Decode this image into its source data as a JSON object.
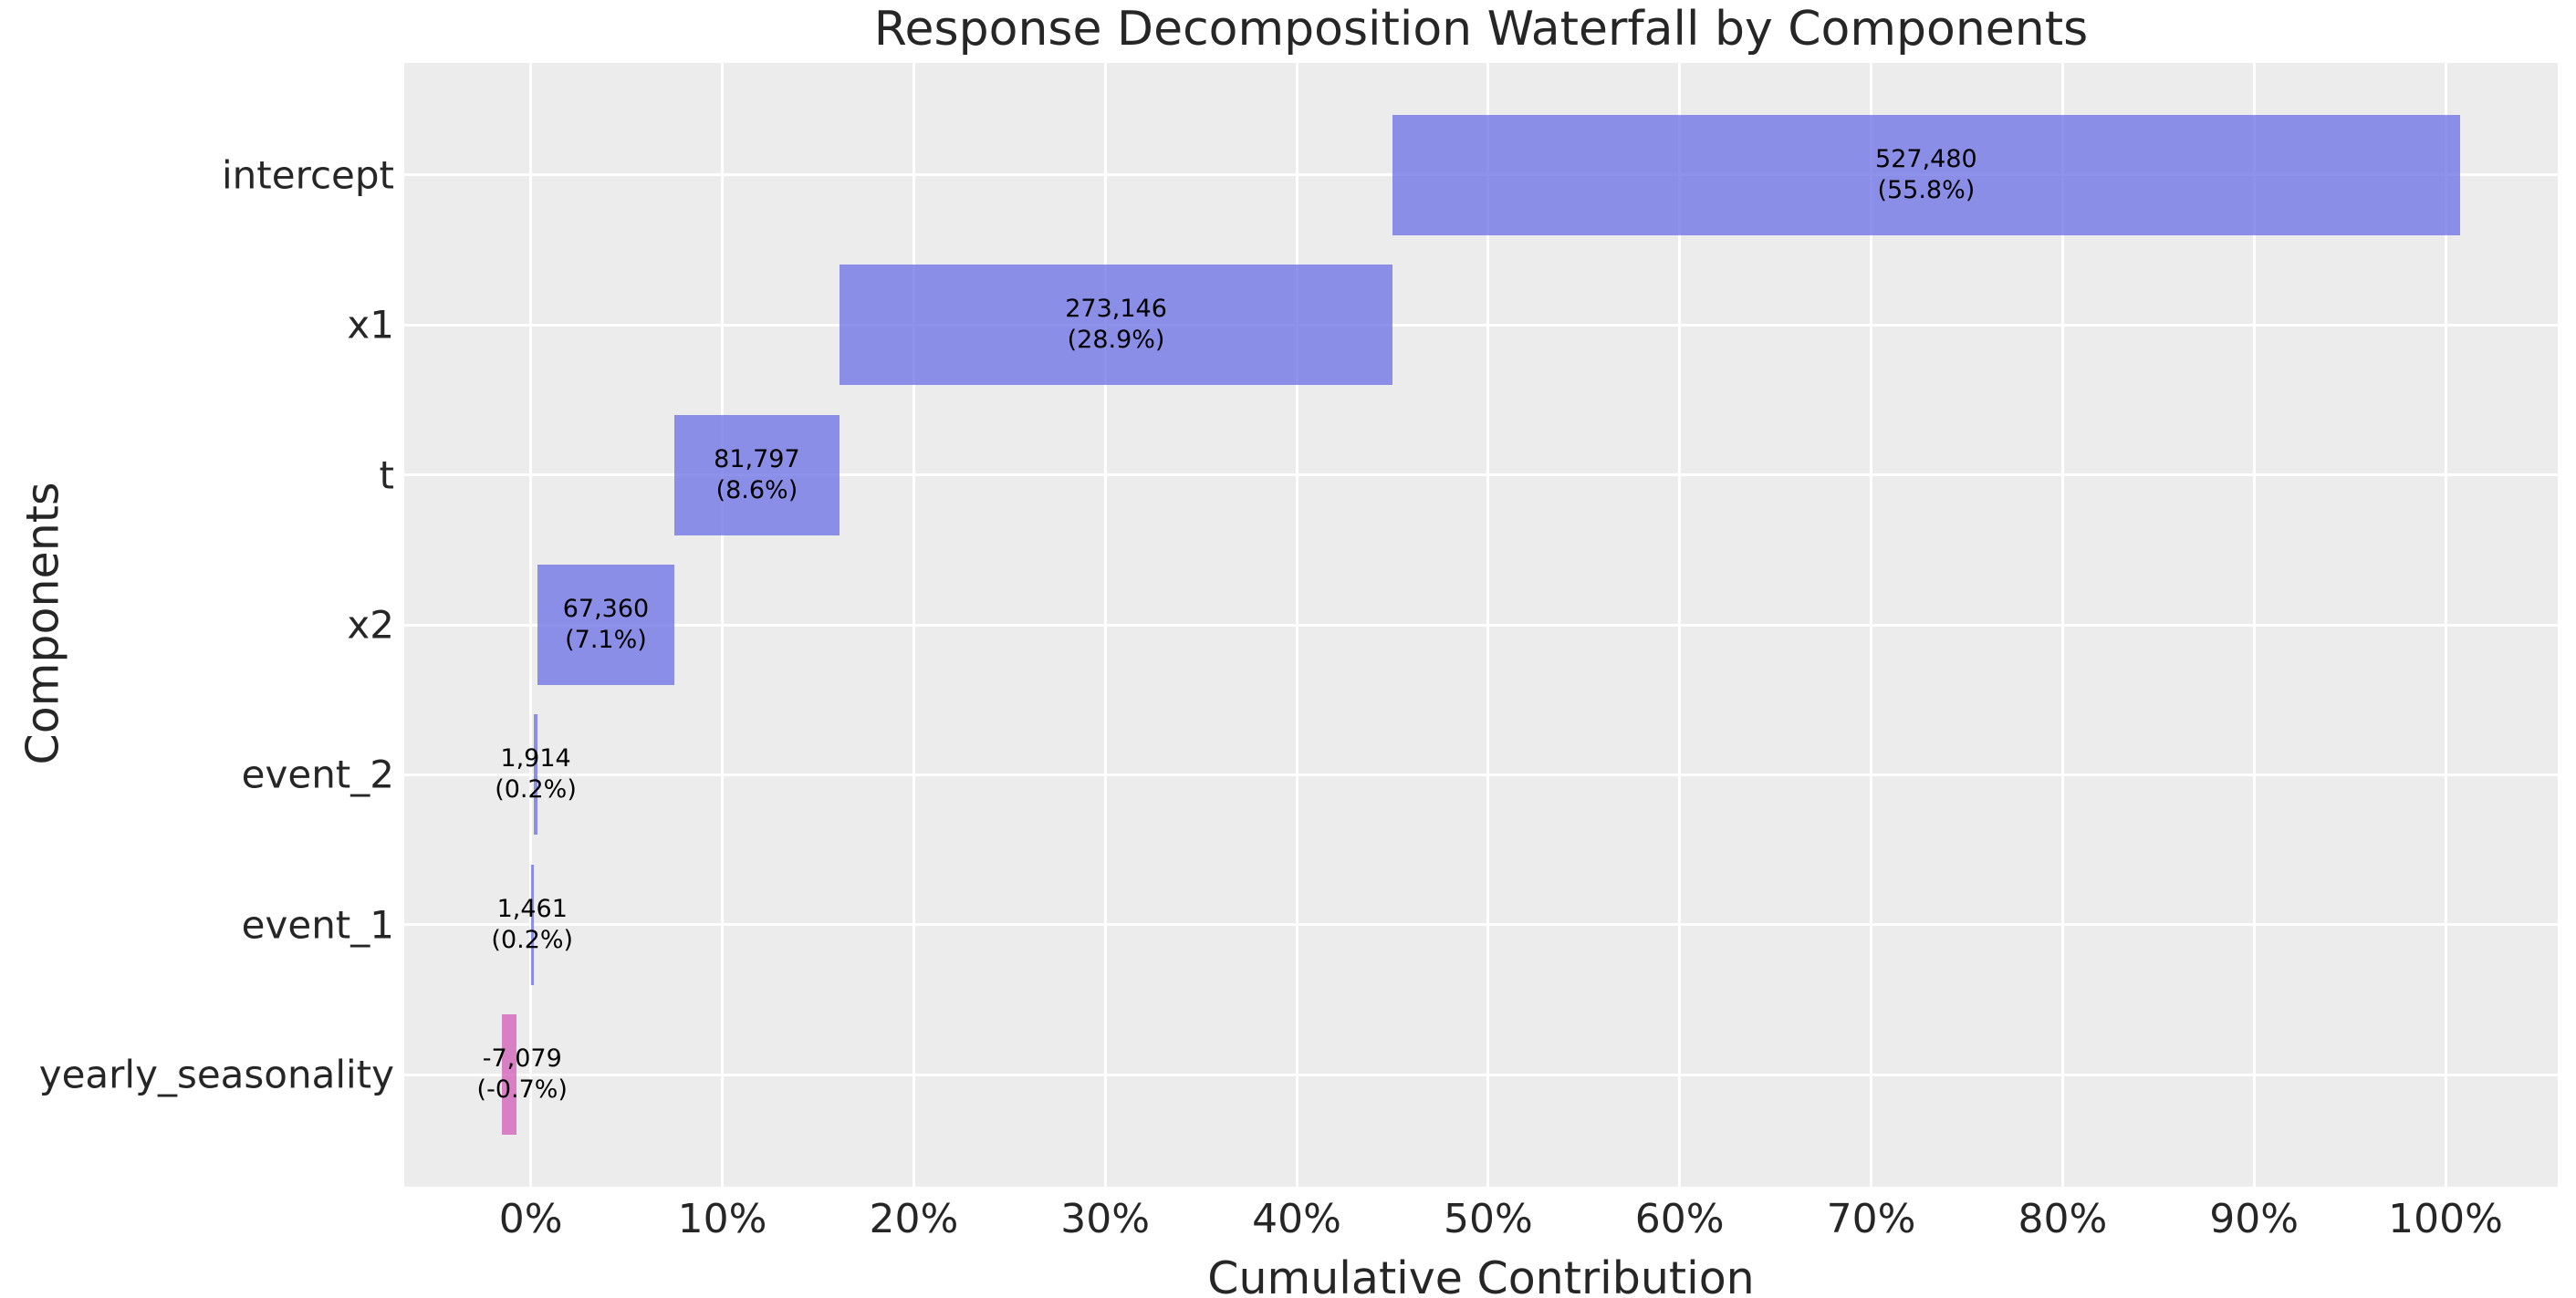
{
  "title": "Response Decomposition Waterfall by Components",
  "x_axis": {
    "label": "Cumulative Contribution"
  },
  "y_axis": {
    "label": "Components"
  },
  "chart_data": {
    "type": "bar",
    "orientation": "horizontal-waterfall",
    "title": "Response Decomposition Waterfall by Components",
    "xlabel": "Cumulative Contribution",
    "ylabel": "Components",
    "xlim": [
      -6.61,
      105.86
    ],
    "grid": true,
    "legend": false,
    "plot_bg_color": "#ececec",
    "grid_color": "#ffffff",
    "text_color": "#262626",
    "bar_label_color": "#000000",
    "bar_alpha": 0.8,
    "colors": {
      "positive": "#7277e5",
      "negative": "#d564ba"
    },
    "x_ticks": [
      {
        "value": 0,
        "label": "0%"
      },
      {
        "value": 10,
        "label": "10%"
      },
      {
        "value": 20,
        "label": "20%"
      },
      {
        "value": 30,
        "label": "30%"
      },
      {
        "value": 40,
        "label": "40%"
      },
      {
        "value": 50,
        "label": "50%"
      },
      {
        "value": 60,
        "label": "60%"
      },
      {
        "value": 70,
        "label": "70%"
      },
      {
        "value": 80,
        "label": "80%"
      },
      {
        "value": 90,
        "label": "90%"
      },
      {
        "value": 100,
        "label": "100%"
      }
    ],
    "categories": [
      "intercept",
      "x1",
      "t",
      "x2",
      "event_2",
      "event_1",
      "yearly_seasonality"
    ],
    "bars": [
      {
        "category": "intercept",
        "value": 527480,
        "pct": 55.8,
        "start_pct": 45.0,
        "end_pct": 100.75,
        "label_line1": "527,480",
        "label_line2": "(55.8%)",
        "sign": "positive"
      },
      {
        "category": "x1",
        "value": 273146,
        "pct": 28.9,
        "start_pct": 16.13,
        "end_pct": 45.0,
        "label_line1": "273,146",
        "label_line2": "(28.9%)",
        "sign": "positive"
      },
      {
        "category": "t",
        "value": 81797,
        "pct": 8.6,
        "start_pct": 7.48,
        "end_pct": 16.13,
        "label_line1": "81,797",
        "label_line2": "(8.6%)",
        "sign": "positive"
      },
      {
        "category": "x2",
        "value": 67360,
        "pct": 7.1,
        "start_pct": 0.36,
        "end_pct": 7.48,
        "label_line1": "67,360",
        "label_line2": "(7.1%)",
        "sign": "positive"
      },
      {
        "category": "event_2",
        "value": 1914,
        "pct": 0.2,
        "start_pct": 0.15,
        "end_pct": 0.36,
        "label_line1": "1,914",
        "label_line2": "(0.2%)",
        "sign": "positive"
      },
      {
        "category": "event_1",
        "value": 1461,
        "pct": 0.2,
        "start_pct": 0.0,
        "end_pct": 0.15,
        "label_line1": "1,461",
        "label_line2": "(0.2%)",
        "sign": "positive"
      },
      {
        "category": "yearly_seasonality",
        "value": -7079,
        "pct": -0.7,
        "start_pct": -1.5,
        "end_pct": -0.75,
        "label_line1": "-7,079",
        "label_line2": "(-0.7%)",
        "sign": "negative",
        "label_x_pct": -0.45
      }
    ]
  }
}
